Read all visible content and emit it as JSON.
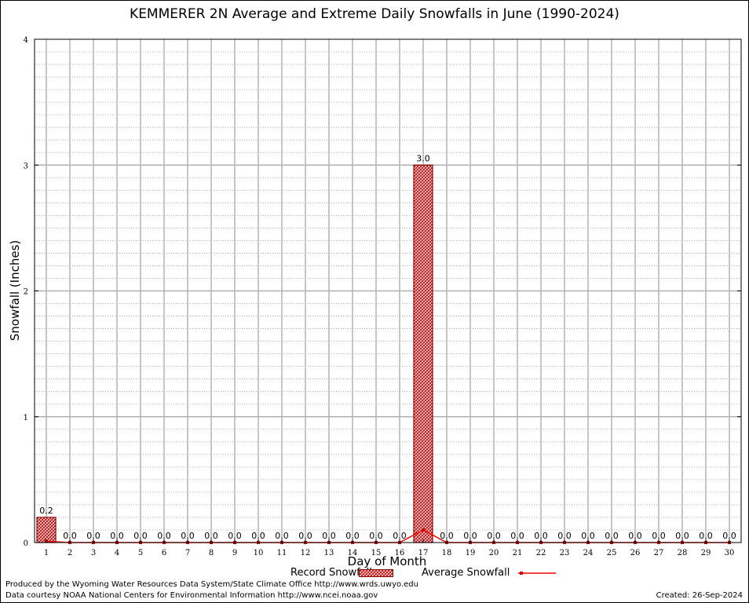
{
  "chart_data": {
    "type": "bar",
    "title": "KEMMERER 2N Average and Extreme Daily Snowfalls in June (1990-2024)",
    "xlabel": "Day of Month",
    "ylabel": "Snowfall (Inches)",
    "ylim": [
      0,
      4
    ],
    "yticks": [
      "0",
      "1",
      "2",
      "3",
      "4"
    ],
    "categories": [
      "1",
      "2",
      "3",
      "4",
      "5",
      "6",
      "7",
      "8",
      "9",
      "10",
      "11",
      "12",
      "13",
      "14",
      "15",
      "16",
      "17",
      "18",
      "19",
      "20",
      "21",
      "22",
      "23",
      "24",
      "25",
      "26",
      "27",
      "28",
      "29",
      "30"
    ],
    "series": [
      {
        "name": "Record Snowfall",
        "type": "bar",
        "color": "#cc0000",
        "values": [
          0.2,
          0,
          0,
          0,
          0,
          0,
          0,
          0,
          0,
          0,
          0,
          0,
          0,
          0,
          0,
          0,
          3.0,
          0,
          0,
          0,
          0,
          0,
          0,
          0,
          0,
          0,
          0,
          0,
          0,
          0
        ]
      },
      {
        "name": "Average Snowfall",
        "type": "line",
        "color": "#ff0000",
        "values": [
          0.01,
          0,
          0,
          0,
          0,
          0,
          0,
          0,
          0,
          0,
          0,
          0,
          0,
          0,
          0,
          0,
          0.1,
          0,
          0,
          0,
          0,
          0,
          0,
          0,
          0,
          0,
          0,
          0,
          0,
          0
        ]
      }
    ],
    "value_labels": [
      "0.2",
      "0.0",
      "0.0",
      "0.0",
      "0.0",
      "0.0",
      "0.0",
      "0.0",
      "0.0",
      "0.0",
      "0.0",
      "0.0",
      "0.0",
      "0.0",
      "0.0",
      "0.0",
      "3.0",
      "0.0",
      "0.0",
      "0.0",
      "0.0",
      "0.0",
      "0.0",
      "0.0",
      "0.0",
      "0.0",
      "0.0",
      "0.0",
      "0.0",
      "0.0"
    ],
    "grid": true,
    "legend": "bottom"
  },
  "footer": {
    "producer": "Produced by the Wyoming Water Resources Data System/State Climate Office http://www.wrds.uwyo.edu",
    "source": "Data courtesy NOAA National Centers for Environmental Information http://www.ncei.noaa.gov",
    "created": "Created:  26-Sep-2024"
  }
}
